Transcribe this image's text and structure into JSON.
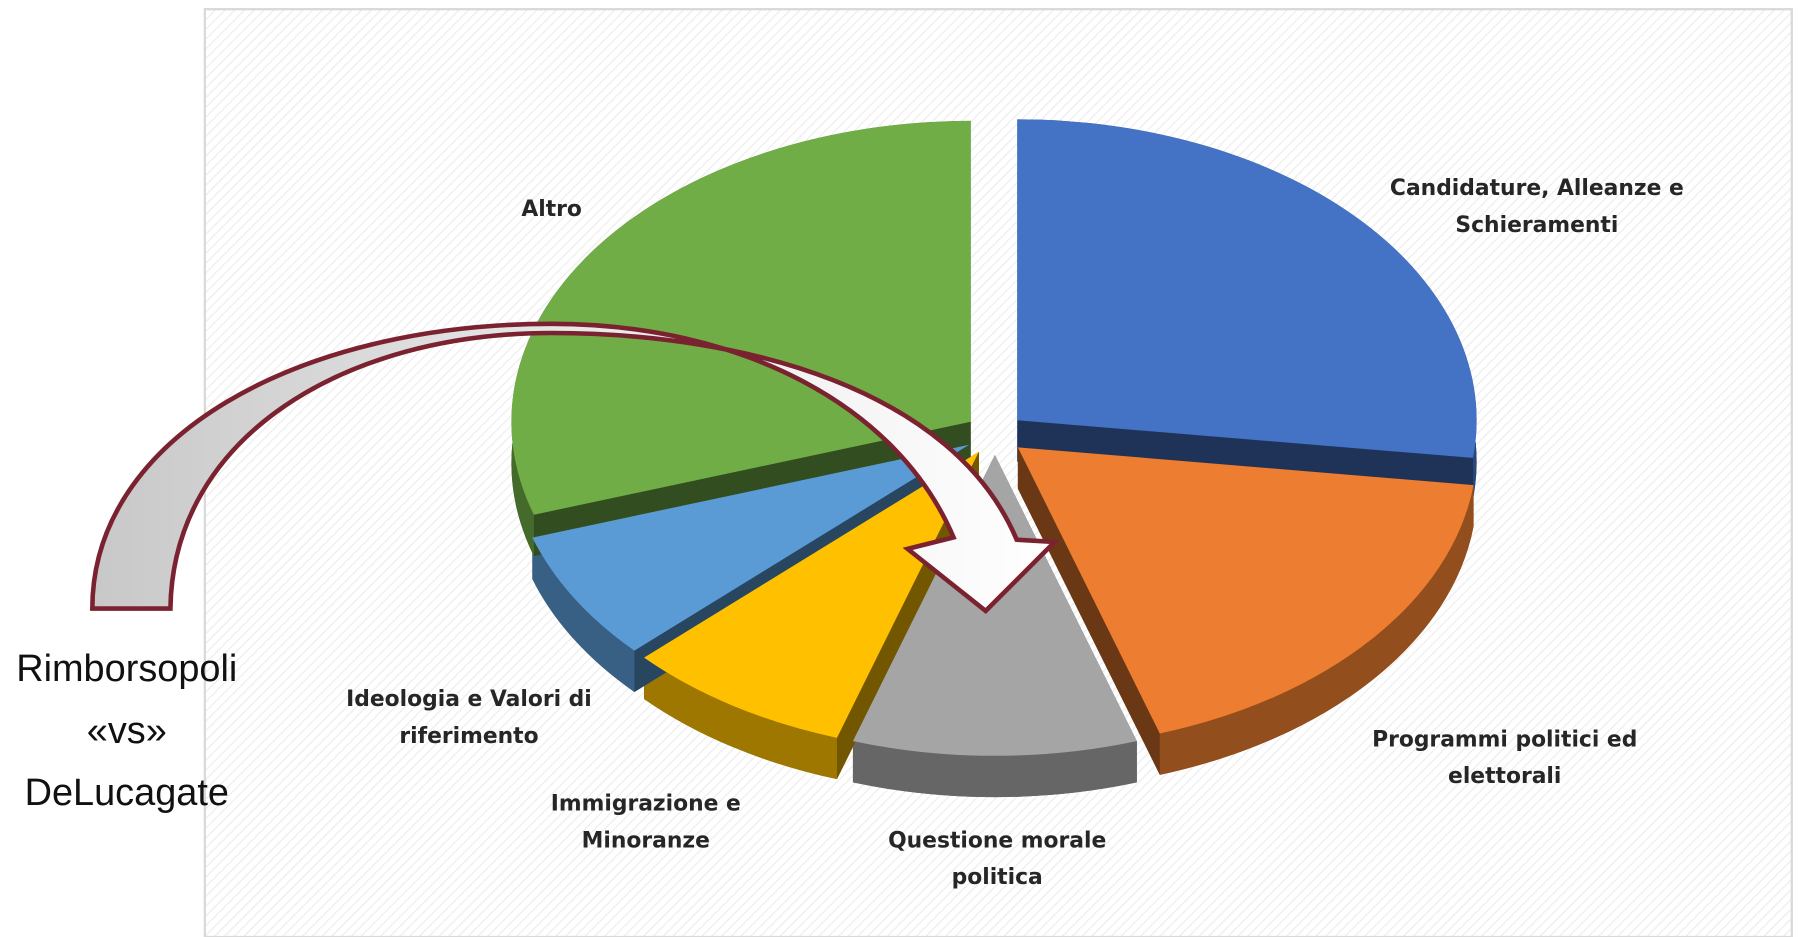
{
  "chart_data": {
    "type": "pie",
    "categories": [
      "Candidature, Alleanze e Schieramenti",
      "Programmi politici ed elettorali",
      "Questione morale politica",
      "Immigrazione e Minoranze",
      "Ideologia e Valori di riferimento",
      "Altro"
    ],
    "values": [
      27,
      18,
      10,
      8,
      7,
      30
    ],
    "colors": [
      "#4472c4",
      "#ed7d31",
      "#a5a5a5",
      "#ffc000",
      "#5b9bd5",
      "#70ad47"
    ],
    "annotation": "Rimborsopoli «vs» DeLucagate"
  }
}
